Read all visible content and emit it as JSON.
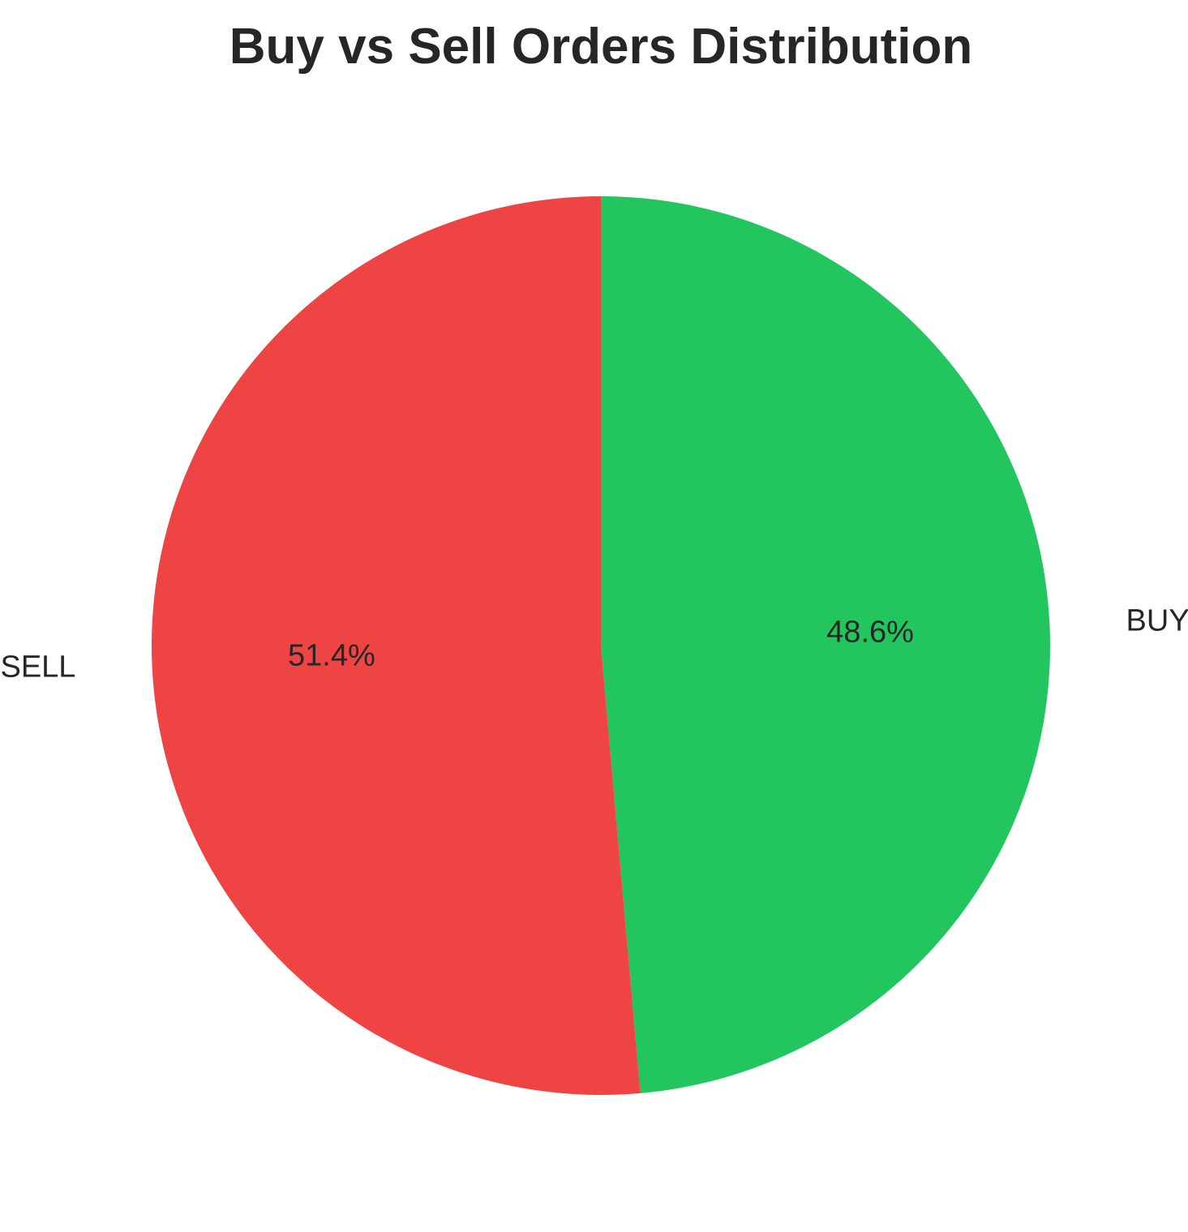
{
  "chart_data": {
    "type": "pie",
    "title": "Buy vs Sell Orders Distribution",
    "slices": [
      {
        "label": "BUY",
        "value": 48.6,
        "pct_label": "48.6%",
        "color": "#22c55e"
      },
      {
        "label": "SELL",
        "value": 51.4,
        "pct_label": "51.4%",
        "color": "#ef4444"
      }
    ],
    "start": "top",
    "direction": "clockwise"
  }
}
